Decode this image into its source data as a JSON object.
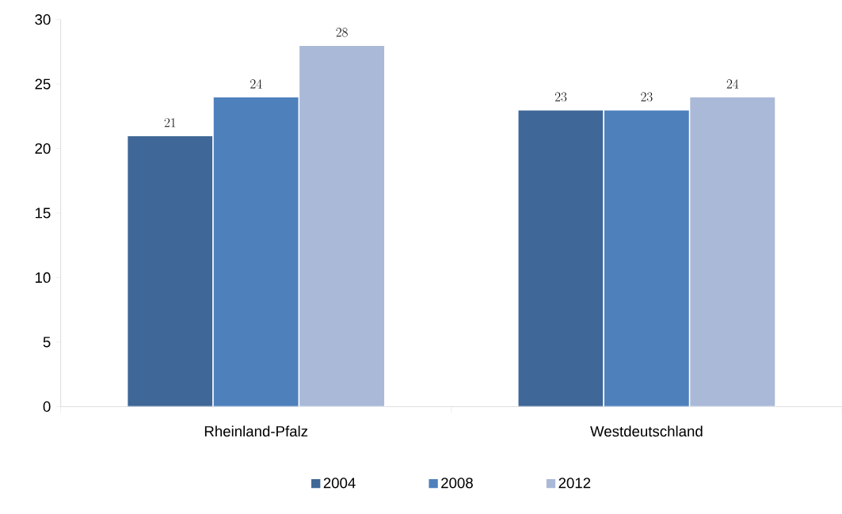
{
  "chart_data": {
    "type": "bar",
    "categories": [
      "Rheinland-Pfalz",
      "Westdeutschland"
    ],
    "series": [
      {
        "name": "2004",
        "color": "#3f6797",
        "values": [
          21,
          23
        ]
      },
      {
        "name": "2008",
        "color": "#4e80bc",
        "values": [
          24,
          23
        ]
      },
      {
        "name": "2012",
        "color": "#aab9d8",
        "values": [
          28,
          24
        ]
      }
    ],
    "ylim": [
      0,
      30
    ],
    "yticks": [
      0,
      5,
      10,
      15,
      20,
      25,
      30
    ],
    "data_labels": true,
    "grid": false,
    "legend": "bottom"
  }
}
